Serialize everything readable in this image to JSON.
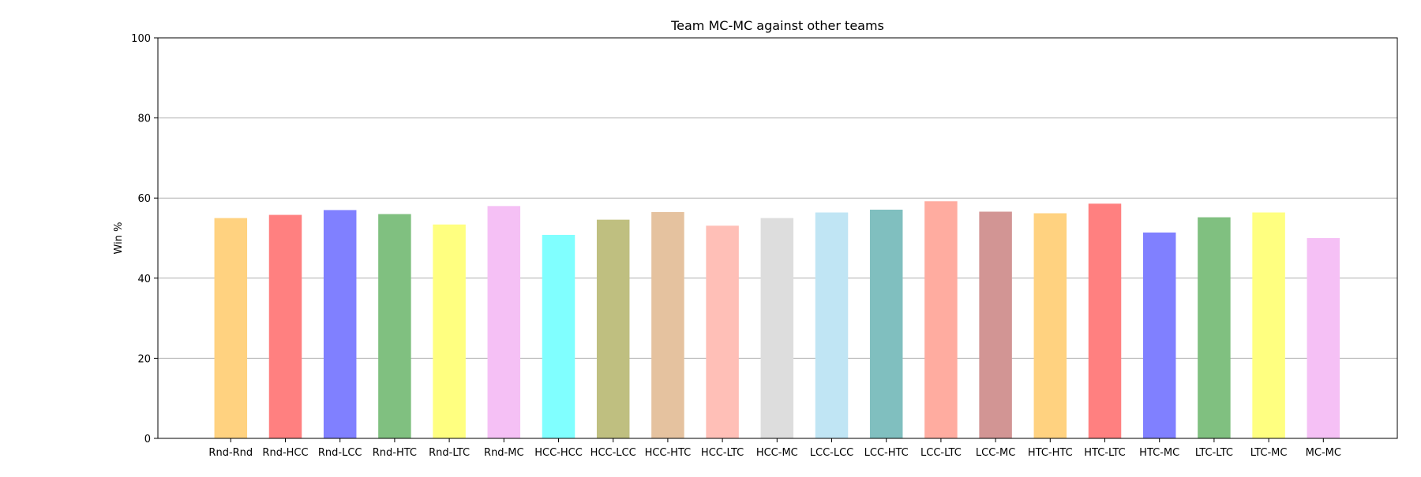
{
  "chart_data": {
    "type": "bar",
    "title": "Team MC-MC against other teams",
    "xlabel": "",
    "ylabel": "Win %",
    "ylim": [
      0,
      100
    ],
    "yticks": [
      0,
      20,
      40,
      60,
      80,
      100
    ],
    "grid": "y",
    "categories": [
      "Rnd-Rnd",
      "Rnd-HCC",
      "Rnd-LCC",
      "Rnd-HTC",
      "Rnd-LTC",
      "Rnd-MC",
      "HCC-HCC",
      "HCC-LCC",
      "HCC-HTC",
      "HCC-LTC",
      "HCC-MC",
      "LCC-LCC",
      "LCC-HTC",
      "LCC-LTC",
      "LCC-MC",
      "HTC-HTC",
      "HTC-LTC",
      "HTC-MC",
      "LTC-LTC",
      "LTC-MC",
      "MC-MC"
    ],
    "values": [
      55.0,
      55.8,
      57.0,
      56.0,
      53.4,
      58.0,
      50.8,
      54.6,
      56.5,
      53.1,
      55.0,
      56.4,
      57.1,
      59.2,
      56.6,
      56.2,
      58.6,
      51.4,
      55.2,
      56.4,
      50.0
    ],
    "colors": [
      "#ffd280",
      "#ff8080",
      "#8080ff",
      "#80c080",
      "#ffff80",
      "#f5c0f5",
      "#80ffff",
      "#bfbf80",
      "#e5c29f",
      "#ffbfb7",
      "#dddddd",
      "#c0e5f4",
      "#80bfbf",
      "#ffaca0",
      "#d29594",
      "#ffd280",
      "#ff8080",
      "#8080ff",
      "#80c080",
      "#ffff80",
      "#f5c0f5"
    ]
  }
}
